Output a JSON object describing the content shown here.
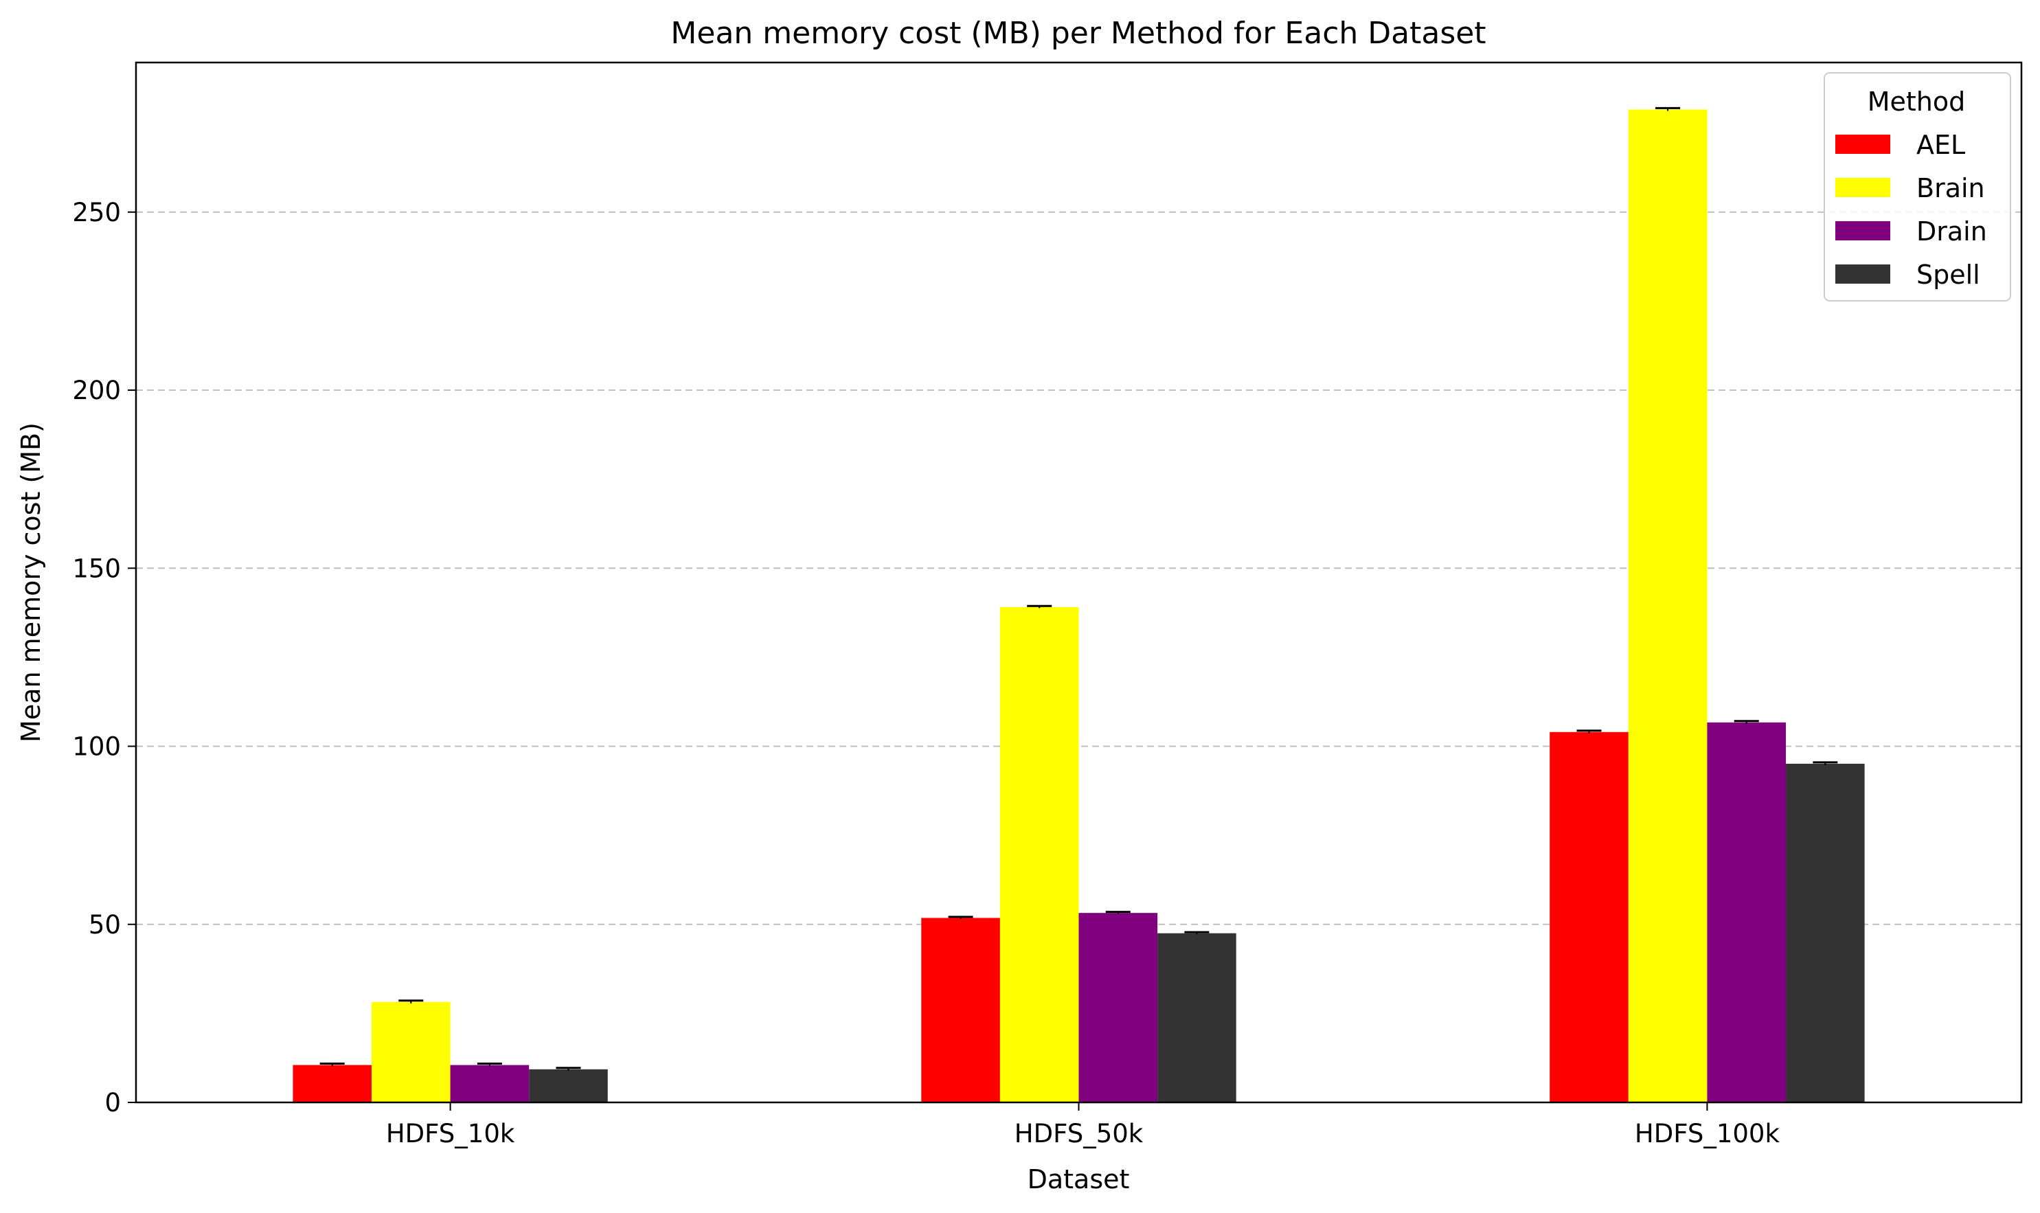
{
  "chart_data": {
    "type": "bar",
    "title": "Mean memory cost (MB) per Method for Each Dataset",
    "xlabel": "Dataset",
    "ylabel": "Mean memory cost (MB)",
    "categories": [
      "HDFS_10k",
      "HDFS_50k",
      "HDFS_100k"
    ],
    "ylim": [
      0,
      292
    ],
    "yticks": [
      0,
      50,
      100,
      150,
      200,
      250
    ],
    "grid": "horizontal, dashed",
    "legend": {
      "title": "Method",
      "placement": "top-right"
    },
    "series": [
      {
        "name": "AEL",
        "color": "#ff0000",
        "values": [
          10.5,
          51.8,
          104.0
        ],
        "errors": [
          0.4,
          0.3,
          0.4
        ]
      },
      {
        "name": "Brain",
        "color": "#ffff00",
        "values": [
          28.2,
          139.1,
          278.8
        ],
        "errors": [
          0.4,
          0.3,
          0.4
        ]
      },
      {
        "name": "Drain",
        "color": "#800080",
        "values": [
          10.5,
          53.2,
          106.7
        ],
        "errors": [
          0.4,
          0.3,
          0.4
        ]
      },
      {
        "name": "Spell",
        "color": "#333333",
        "values": [
          9.3,
          47.5,
          95.1
        ],
        "errors": [
          0.4,
          0.3,
          0.4
        ]
      }
    ]
  }
}
